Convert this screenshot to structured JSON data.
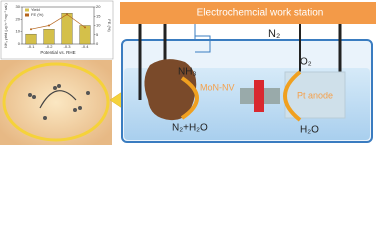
{
  "station_label": "Electrochemcial work station",
  "gas_in": "N₂",
  "cathode": {
    "label": "MoN-NV",
    "product": "NH₃",
    "feed": "N₂+H₂O"
  },
  "anode": {
    "label": "Pt anode",
    "product": "O₂",
    "feed": "H₂O"
  },
  "inset_chart": {
    "type": "bar",
    "xlabel": "Potential vs. RHE",
    "ylabel": "NH₃ yield (μg h⁻¹ mg⁻¹ cat.)",
    "y2label": "FE (%)",
    "categories": [
      "-0.1",
      "-0.2",
      "-0.3",
      "-0.4"
    ],
    "series": [
      {
        "name": "Yield",
        "type": "bar",
        "color": "#d4c04a",
        "values": [
          8,
          12,
          25,
          15
        ]
      },
      {
        "name": "FE (%)",
        "type": "line",
        "axis": "y2",
        "color": "#b5651d",
        "values": [
          8,
          10,
          16,
          9
        ]
      }
    ],
    "ylim": [
      0,
      30
    ],
    "yticks": [
      0,
      10,
      20,
      30
    ],
    "y2lim": [
      0,
      20
    ],
    "y2ticks": [
      0,
      5,
      10,
      15,
      20
    ]
  }
}
